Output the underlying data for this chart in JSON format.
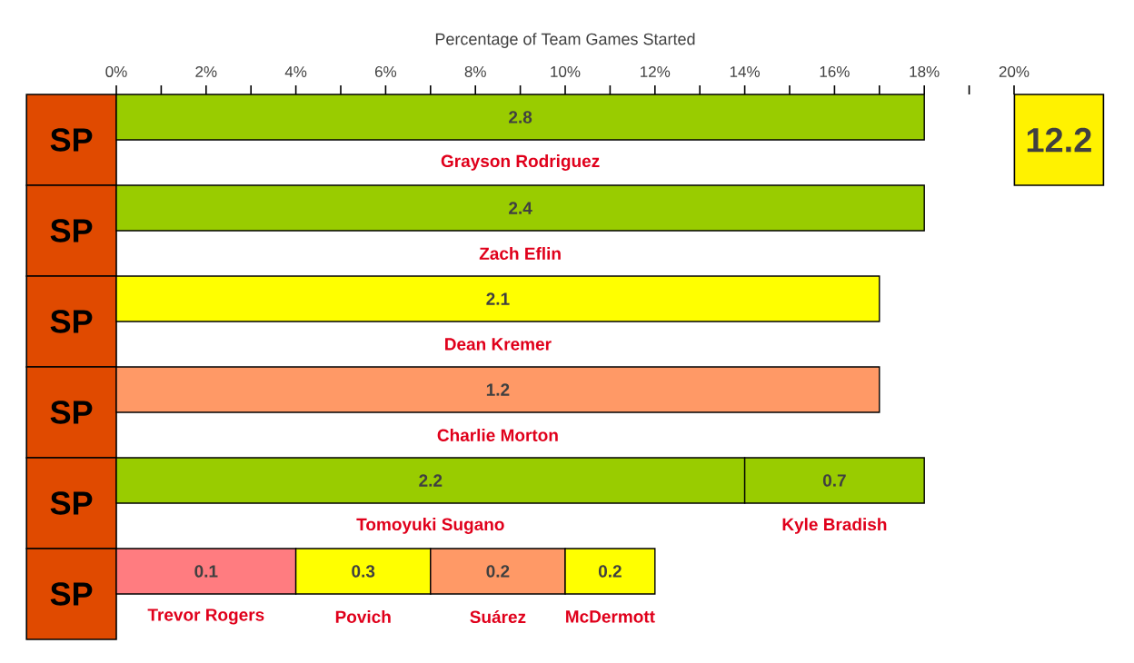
{
  "chart_data": {
    "type": "bar",
    "orientation": "horizontal",
    "stacked": true,
    "xlabel": "Percentage of Team Games Started",
    "categories": [
      "SP",
      "SP",
      "SP",
      "SP",
      "SP",
      "SP"
    ],
    "series": [
      {
        "colors": [
          "#99cc00",
          "#99cc00",
          "#ffff00",
          "#ff9966",
          "#99cc00",
          "#ff7c80"
        ],
        "values": [
          18,
          18,
          17,
          17,
          14,
          4
        ]
      },
      {
        "colors": [
          null,
          null,
          null,
          null,
          "#99cc00",
          "#ffff00"
        ],
        "values": [
          null,
          null,
          null,
          null,
          4,
          3
        ]
      },
      {
        "colors": [
          null,
          null,
          null,
          null,
          null,
          "#ff9966"
        ],
        "values": [
          null,
          null,
          null,
          null,
          null,
          3
        ]
      },
      {
        "colors": [
          null,
          null,
          null,
          null,
          null,
          "#ffff00"
        ],
        "values": [
          null,
          null,
          null,
          null,
          null,
          2
        ]
      }
    ],
    "xlim": [
      0,
      20
    ],
    "xticks": [
      {
        "value": 0,
        "label": "0%"
      },
      {
        "value": 1,
        "label": null
      },
      {
        "value": 2,
        "label": "2%"
      },
      {
        "value": 3,
        "label": null
      },
      {
        "value": 4,
        "label": "4%"
      },
      {
        "value": 5,
        "label": null
      },
      {
        "value": 6,
        "label": "6%"
      },
      {
        "value": 7,
        "label": null
      },
      {
        "value": 8,
        "label": "8%"
      },
      {
        "value": 9,
        "label": null
      },
      {
        "value": 10,
        "label": "10%"
      },
      {
        "value": 11,
        "label": null
      },
      {
        "value": 12,
        "label": "12%"
      },
      {
        "value": 13,
        "label": null
      },
      {
        "value": 14,
        "label": "14%"
      },
      {
        "value": 15,
        "label": null
      },
      {
        "value": 16,
        "label": "16%"
      },
      {
        "value": 17,
        "label": null
      },
      {
        "value": 18,
        "label": "18%"
      },
      {
        "value": 19,
        "label": null
      },
      {
        "value": 20,
        "label": "20%"
      }
    ],
    "annotations": [
      "2.8",
      "Grayson Rodriguez",
      "2.4",
      "Zach Eflin",
      "2.1",
      "Dean Kremer",
      "1.2",
      "Charlie Morton",
      "2.2",
      "Tomoyuki Sugano",
      "0.7",
      "Kyle Bradish",
      "0.1",
      "Trevor Rogers",
      "0.3",
      "Povich",
      "0.2",
      "Suárez",
      "0.2",
      "McDermott",
      "12.2"
    ],
    "grid": false
  }
}
